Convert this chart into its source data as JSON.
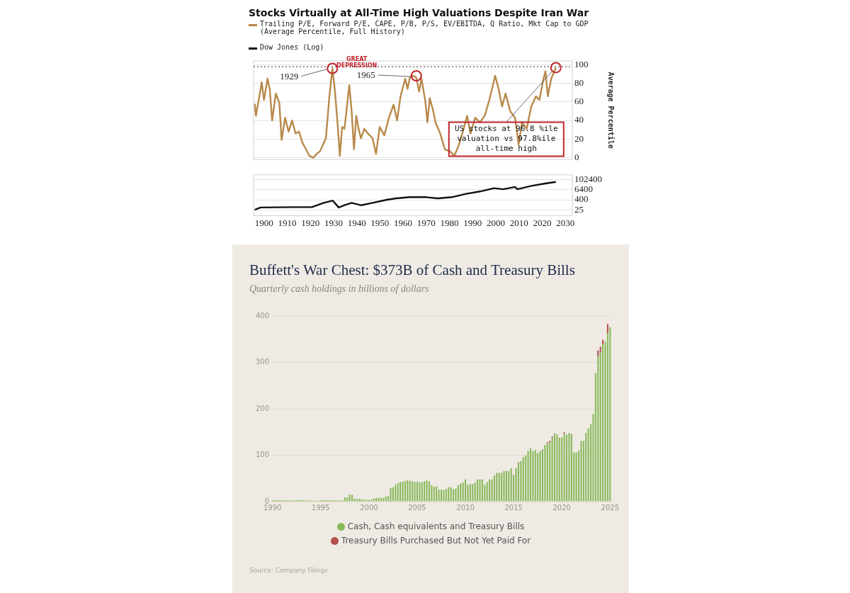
{
  "chart_data": [
    {
      "type": "line",
      "title": "Stocks Virtually at All-Time High Valuations Despite Iran War",
      "ylabel": "Average Percentile",
      "x": [
        1896.0,
        1896.5,
        1898.0,
        1899.0,
        1900.0,
        1901.5,
        1902.5,
        1903.5,
        1905.1,
        1906.6,
        1907.6,
        1909.1,
        1910.6,
        1912.1,
        1913.6,
        1915.1,
        1916.6,
        1918.1,
        1919.6,
        1921.2,
        1922.7,
        1924.2,
        1926.7,
        1928.2,
        1929.5,
        1930.5,
        1931.7,
        1932.7,
        1933.7,
        1934.7,
        1936.8,
        1937.8,
        1938.8,
        1939.8,
        1940.8,
        1941.8,
        1943.3,
        1944.8,
        1946.8,
        1948.3,
        1949.9,
        1951.9,
        1953.9,
        1955.9,
        1957.4,
        1958.9,
        1960.9,
        1961.9,
        1962.9,
        1964.4,
        1965.7,
        1966.9,
        1967.9,
        1969.5,
        1970.5,
        1971.5,
        1973.0,
        1974.0,
        1976.0,
        1978.0,
        1980.1,
        1982.1,
        1984.1,
        1986.1,
        1987.6,
        1989.1,
        1991.1,
        1993.1,
        1995.2,
        1997.2,
        1999.7,
        2001.2,
        2002.7,
        2004.2,
        2006.2,
        2008.3,
        2009.8,
        2011.3,
        2013.3,
        2015.3,
        2017.3,
        2018.8,
        2020.4,
        2021.4,
        2022.4,
        2023.9,
        2025.9
      ],
      "series": [
        {
          "name": "Trailing P/E, Forward P/E, CAPE, P/B, P/S, EV/EBITDA, Q Ratio, Mkt Cap to GDP (Average Percentile, Full History)",
          "color": "#b8894a",
          "values": [
            58,
            45,
            66,
            81,
            62,
            85,
            73,
            40,
            69,
            59,
            19,
            43,
            28,
            40,
            26,
            28,
            16,
            9,
            2,
            0,
            4,
            7,
            21,
            66,
            96,
            74,
            38,
            2,
            33,
            31,
            78,
            50,
            9,
            45,
            31,
            21,
            31,
            26,
            21,
            4,
            33,
            24,
            43,
            57,
            40,
            66,
            85,
            74,
            86,
            88,
            86,
            71,
            85,
            62,
            38,
            64,
            50,
            38,
            26,
            9,
            7,
            2,
            14,
            31,
            45,
            26,
            43,
            38,
            45,
            62,
            88,
            74,
            55,
            69,
            50,
            43,
            14,
            38,
            31,
            55,
            66,
            62,
            83,
            93,
            66,
            85,
            96.8
          ]
        }
      ],
      "xlim": [
        1895.5,
        2033
      ],
      "xticks": [
        1900,
        1910,
        1920,
        1930,
        1940,
        1950,
        1960,
        1970,
        1980,
        1990,
        2000,
        2010,
        2020,
        2030
      ],
      "ylim": [
        -2,
        104
      ],
      "yticks": [
        0,
        20,
        40,
        60,
        80,
        100
      ],
      "grid": "y",
      "legend": "top left",
      "tick_labels": "y",
      "ref_lines": [
        {
          "axis": "y",
          "value": 97.8,
          "color": "#555555",
          "line_style": "dotted"
        }
      ],
      "annotations": [
        {
          "text": "GREAT DEPRESSION",
          "x": 1940,
          "y": 101
        },
        {
          "text": "1929",
          "x": 1929.5,
          "y": 96
        },
        {
          "text": "1965",
          "x": 1965.7,
          "y": 88
        },
        {
          "text": "US stocks at 96.8 %ile valuation vs 97.8%ile all-time high",
          "x": 2025.9,
          "y": 96.8
        }
      ]
    },
    {
      "type": "line",
      "log": "y",
      "x": [
        1896.0,
        1898.5,
        1904.5,
        1912.6,
        1920.6,
        1925.7,
        1929.7,
        1932.2,
        1934.7,
        1937.8,
        1941.8,
        1946.8,
        1952.9,
        1956.9,
        1962.9,
        1970.0,
        1975.0,
        1981.0,
        1987.1,
        1993.1,
        1999.2,
        2003.2,
        2008.3,
        2009.3,
        2015.3,
        2021.4,
        2025.9
      ],
      "series": [
        {
          "name": "Dow Jones (Log)",
          "color": "#111111",
          "values": [
            25,
            48,
            50,
            53,
            53,
            170,
            320,
            48,
            89,
            170,
            89,
            170,
            400,
            600,
            830,
            830,
            600,
            830,
            2100,
            4000,
            10000,
            7400,
            14000,
            7400,
            19000,
            37000,
            57000
          ]
        }
      ],
      "xlim": [
        1895.5,
        2033
      ],
      "xticks": [
        1900,
        1910,
        1920,
        1930,
        1940,
        1950,
        1960,
        1970,
        1980,
        1990,
        2000,
        2010,
        2020,
        2030
      ],
      "ylim": [
        5,
        400000
      ],
      "yticks": [
        25,
        400,
        6400,
        102400
      ],
      "grid": "y",
      "legend": "top left"
    },
    {
      "type": "bar",
      "title": "Buffett's War Chest: $373B of Cash and Treasury Bills",
      "subtitle": "Quarterly cash holdings in billions of dollars",
      "categories": [
        "1990",
        null,
        null,
        null,
        null,
        null,
        null,
        null,
        null,
        null,
        null,
        null,
        null,
        null,
        null,
        null,
        null,
        null,
        null,
        null,
        "1995",
        null,
        null,
        null,
        null,
        null,
        null,
        null,
        null,
        null,
        null,
        null,
        null,
        null,
        null,
        null,
        null,
        null,
        null,
        null,
        "2000",
        null,
        null,
        null,
        null,
        null,
        null,
        null,
        null,
        null,
        null,
        null,
        null,
        null,
        null,
        null,
        null,
        null,
        null,
        null,
        "2005",
        null,
        null,
        null,
        null,
        null,
        null,
        null,
        null,
        null,
        null,
        null,
        null,
        null,
        null,
        null,
        null,
        null,
        null,
        null,
        "2010",
        null,
        null,
        null,
        null,
        null,
        null,
        null,
        null,
        null,
        null,
        null,
        null,
        null,
        null,
        null,
        null,
        null,
        null,
        null,
        "2015",
        null,
        null,
        null,
        null,
        null,
        null,
        null,
        null,
        null,
        null,
        null,
        null,
        null,
        null,
        null,
        null,
        null,
        null,
        null,
        "2020",
        null,
        null,
        null,
        null,
        null,
        null,
        null,
        null,
        null,
        null,
        null,
        null,
        null,
        null,
        null,
        null,
        null,
        null,
        null,
        "2025"
      ],
      "series": [
        {
          "name": "Cash, Cash equivalents and Treasury Bills",
          "color": "#8ab95c",
          "values": [
            3,
            3,
            3,
            3,
            3,
            3,
            3,
            3,
            3,
            3,
            3,
            4,
            3,
            3,
            3,
            3,
            2,
            2,
            2,
            2,
            3,
            3,
            3,
            3,
            3,
            3,
            3,
            3,
            3,
            3,
            9,
            9,
            15,
            15,
            6,
            6,
            6,
            5,
            4,
            4,
            4,
            4,
            7,
            8,
            8,
            8,
            8,
            11,
            12,
            29,
            31,
            36,
            40,
            42,
            43,
            44,
            46,
            45,
            44,
            43,
            43,
            42,
            42,
            44,
            46,
            44,
            35,
            32,
            33,
            26,
            26,
            25,
            27,
            31,
            31,
            27,
            28,
            35,
            39,
            41,
            48,
            36,
            38,
            38,
            41,
            48,
            48,
            48,
            36,
            42,
            48,
            48,
            56,
            62,
            62,
            62,
            66,
            66,
            66,
            72,
            58,
            73,
            85,
            87,
            96,
            99,
            109,
            115,
            109,
            111,
            105,
            109,
            113,
            122,
            125,
            128,
            137,
            147,
            145,
            138,
            138,
            146,
            144,
            148,
            146,
            106,
            106,
            110,
            131,
            131,
            148,
            158,
            167,
            189,
            277,
            313,
            321,
            339,
            345,
            363,
            376
          ]
        },
        {
          "name": "Treasury Bills Purchased But Not Yet Paid For",
          "color": "#b5504f",
          "values": [
            0,
            0,
            0,
            0,
            0,
            0,
            0,
            0,
            0,
            0,
            0,
            0,
            0,
            0,
            0,
            0,
            0,
            0,
            0,
            0,
            0,
            0,
            0,
            0,
            0,
            0,
            0,
            0,
            0,
            0,
            0,
            0,
            0,
            0,
            0,
            0,
            0,
            0,
            0,
            0,
            0,
            0,
            0,
            0,
            0,
            0,
            0,
            0,
            0,
            0,
            0,
            0,
            0,
            0,
            0,
            0,
            0,
            0,
            0,
            0,
            0,
            0,
            0,
            0,
            0,
            0,
            0,
            0,
            0,
            0,
            0,
            0,
            0,
            0,
            0,
            0,
            0,
            0,
            0,
            0,
            0,
            0,
            0,
            0,
            0,
            0,
            0,
            0,
            0,
            0,
            0,
            0,
            0,
            0,
            0,
            0,
            0,
            0,
            0,
            0,
            0,
            0,
            0,
            0,
            0,
            0,
            0,
            0,
            0,
            0,
            0,
            0,
            0,
            0,
            3,
            3,
            3,
            0,
            0,
            0,
            0,
            3,
            0,
            0,
            0,
            0,
            0,
            0,
            0,
            0,
            0,
            0,
            0,
            0,
            0,
            13,
            13,
            10,
            0,
            20,
            0
          ]
        }
      ],
      "stacked": true,
      "ylim": [
        0,
        400
      ],
      "yticks": [
        0,
        100,
        200,
        300,
        400
      ],
      "grid": "y",
      "legend": "bottom",
      "annotations": [
        "Source: Company Filings"
      ]
    }
  ]
}
